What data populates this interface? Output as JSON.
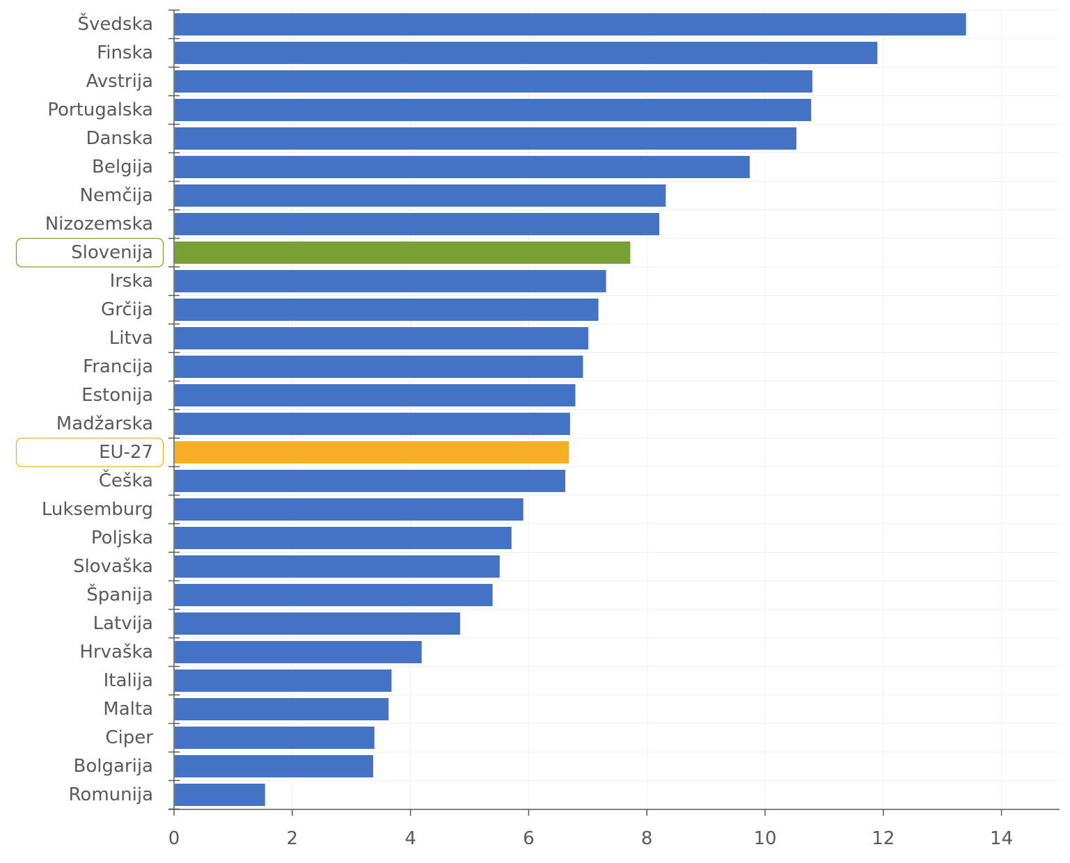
{
  "chart_data": {
    "type": "bar",
    "orientation": "horizontal",
    "categories": [
      "Švedska",
      "Finska",
      "Avstrija",
      "Portugalska",
      "Danska",
      "Belgija",
      "Nemčija",
      "Nizozemska",
      "Slovenija",
      "Irska",
      "Grčija",
      "Litva",
      "Francija",
      "Estonija",
      "Madžarska",
      "EU-27",
      "Češka",
      "Luksemburg",
      "Poljska",
      "Slovaška",
      "Španija",
      "Latvija",
      "Hrvaška",
      "Italija",
      "Malta",
      "Ciper",
      "Bolgarija",
      "Romunija"
    ],
    "values": [
      13.4,
      11.9,
      10.8,
      10.78,
      10.53,
      9.74,
      8.32,
      8.21,
      7.72,
      7.31,
      7.18,
      7.01,
      6.92,
      6.79,
      6.7,
      6.68,
      6.62,
      5.91,
      5.71,
      5.51,
      5.39,
      4.84,
      4.19,
      3.68,
      3.63,
      3.39,
      3.37,
      1.54
    ],
    "highlight": {
      "Slovenija": "#7a9f35",
      "EU-27": "#f6ae24"
    },
    "title": "",
    "xlabel": "",
    "ylabel": "",
    "xlim": [
      0,
      15
    ],
    "xticks": [
      0,
      2,
      4,
      6,
      8,
      10,
      12,
      14
    ],
    "grid": true,
    "legend": "none",
    "colors": {
      "bar": "#4472c4",
      "highlight_slovenia": "#7a9f35",
      "highlight_eu": "#f6ae24",
      "axis": "#595959",
      "grid": "#f0f0f0",
      "label": "#595959"
    }
  }
}
